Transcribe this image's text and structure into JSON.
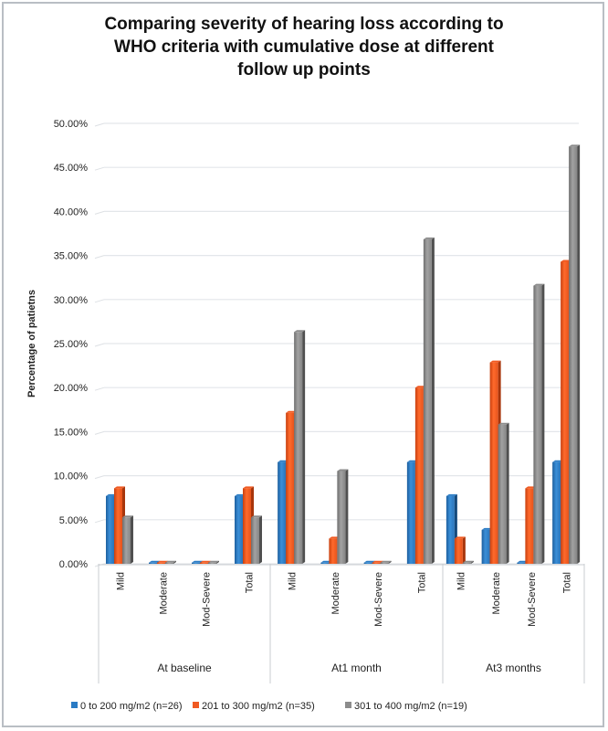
{
  "chart_data": {
    "type": "bar",
    "title": "Comparing severity of hearing loss according to WHO criteria with cumulative dose at different follow up points",
    "title_lines": [
      "Comparing severity of hearing loss according to",
      "WHO criteria with cumulative dose at different",
      "follow up points"
    ],
    "xlabel": "",
    "ylabel": "Percentage of patietns",
    "ylim": [
      0,
      50
    ],
    "yticks": [
      "0.00%",
      "5.00%",
      "10.00%",
      "15.00%",
      "20.00%",
      "25.00%",
      "30.00%",
      "35.00%",
      "40.00%",
      "45.00%",
      "50.00%"
    ],
    "grid": true,
    "legend_position": "bottom",
    "groups": [
      {
        "label": "At baseline",
        "categories": [
          "Mild",
          "Moderate",
          "Mod-Severe",
          "Total"
        ]
      },
      {
        "label": "At1 month",
        "categories": [
          "Mild",
          "Moderate",
          "Mod-Severe",
          "Total"
        ]
      },
      {
        "label": "At3 months",
        "categories": [
          "Mild",
          "Moderate",
          "Mod-Severe",
          "Total"
        ]
      }
    ],
    "categories": [
      "Mild",
      "Moderate",
      "Mod-Severe",
      "Total",
      "Mild",
      "Moderate",
      "Mod-Severe",
      "Total",
      "Mild",
      "Moderate",
      "Mod-Severe",
      "Total"
    ],
    "series": [
      {
        "name": "0 to 200 mg/m2 (n=26)",
        "color": "#2a7bc4",
        "values": [
          7.69,
          0,
          0,
          7.69,
          11.54,
          0,
          0,
          11.54,
          7.69,
          3.85,
          0,
          11.54
        ]
      },
      {
        "name": "201 to 300 mg/m2 (n=35)",
        "color": "#f05a22",
        "values": [
          8.57,
          0,
          0,
          8.57,
          17.14,
          2.86,
          0,
          20.0,
          2.86,
          22.86,
          8.57,
          34.29
        ]
      },
      {
        "name": "301  to 400 mg/m2 (n=19)",
        "color": "#8c8c8c",
        "values": [
          5.26,
          0,
          0,
          5.26,
          26.32,
          10.53,
          0,
          36.84,
          0,
          15.79,
          31.58,
          47.37
        ]
      }
    ]
  }
}
